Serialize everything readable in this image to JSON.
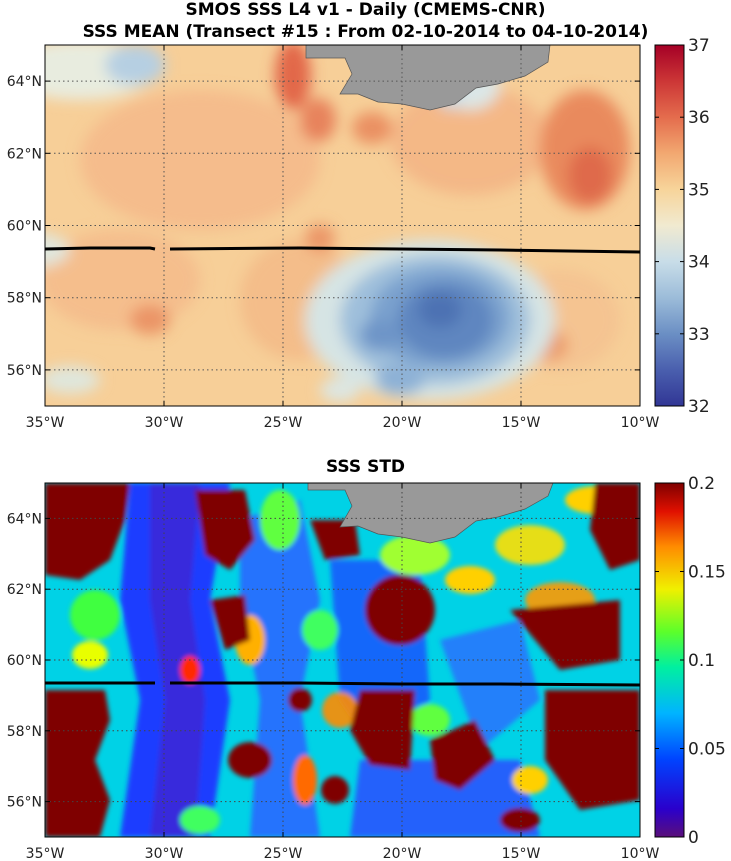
{
  "figure": {
    "title_line1": "SMOS SSS L4 v1 - Daily (CMEMS-CNR)",
    "title_line2": "SSS MEAN (Transect #15 : From 02-10-2014 to 04-10-2014)",
    "title_bottom": "SSS STD"
  },
  "map_extent": {
    "lon_min": -35,
    "lon_max": -10,
    "lat_min": 55,
    "lat_max": 65
  },
  "axes": {
    "x_ticks": [
      {
        "lon": -35,
        "label": "35°W"
      },
      {
        "lon": -30,
        "label": "30°W"
      },
      {
        "lon": -25,
        "label": "25°W"
      },
      {
        "lon": -20,
        "label": "20°W"
      },
      {
        "lon": -15,
        "label": "15°W"
      },
      {
        "lon": -10,
        "label": "10°W"
      }
    ],
    "y_ticks": [
      {
        "lat": 56,
        "label": "56°N"
      },
      {
        "lat": 58,
        "label": "58°N"
      },
      {
        "lat": 60,
        "label": "60°N"
      },
      {
        "lat": 62,
        "label": "62°N"
      },
      {
        "lat": 64,
        "label": "64°N"
      }
    ]
  },
  "transect": {
    "lat": 59.6,
    "lon_start": -35,
    "lon_end": -10
  },
  "top_panel": {
    "variable": "SSS MEAN",
    "colorbar": {
      "min": 32,
      "max": 37,
      "ticks": [
        {
          "value": 37,
          "label": "37"
        },
        {
          "value": 36,
          "label": "36"
        },
        {
          "value": 35,
          "label": "35"
        },
        {
          "value": 34,
          "label": "34"
        },
        {
          "value": 33,
          "label": "33"
        },
        {
          "value": 32,
          "label": "32"
        }
      ]
    }
  },
  "bottom_panel": {
    "variable": "SSS STD",
    "colorbar": {
      "min": 0,
      "max": 0.2,
      "ticks": [
        {
          "value": 0.2,
          "label": "0.2"
        },
        {
          "value": 0.15,
          "label": "0.15"
        },
        {
          "value": 0.1,
          "label": "0.1"
        },
        {
          "value": 0.05,
          "label": "0.05"
        },
        {
          "value": 0,
          "label": "0"
        }
      ]
    }
  },
  "colors": {
    "land": "#999999",
    "transect_line": "#000000",
    "grid": "#555555",
    "std_high": "#7f0000"
  }
}
